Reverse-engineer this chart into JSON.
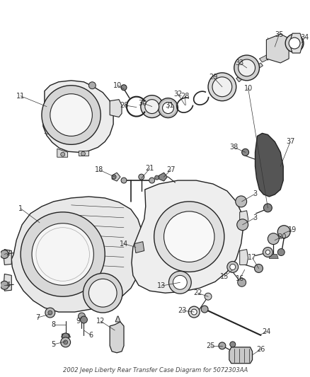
{
  "title": "2002 Jeep Liberty Rear Transfer Case Diagram for 5072303AA",
  "bg_color": "#ffffff",
  "fig_width": 4.39,
  "fig_height": 5.33,
  "dpi": 100,
  "line_color": "#222222",
  "label_color": "#333333",
  "label_fontsize": 7.0,
  "lw": 0.8
}
